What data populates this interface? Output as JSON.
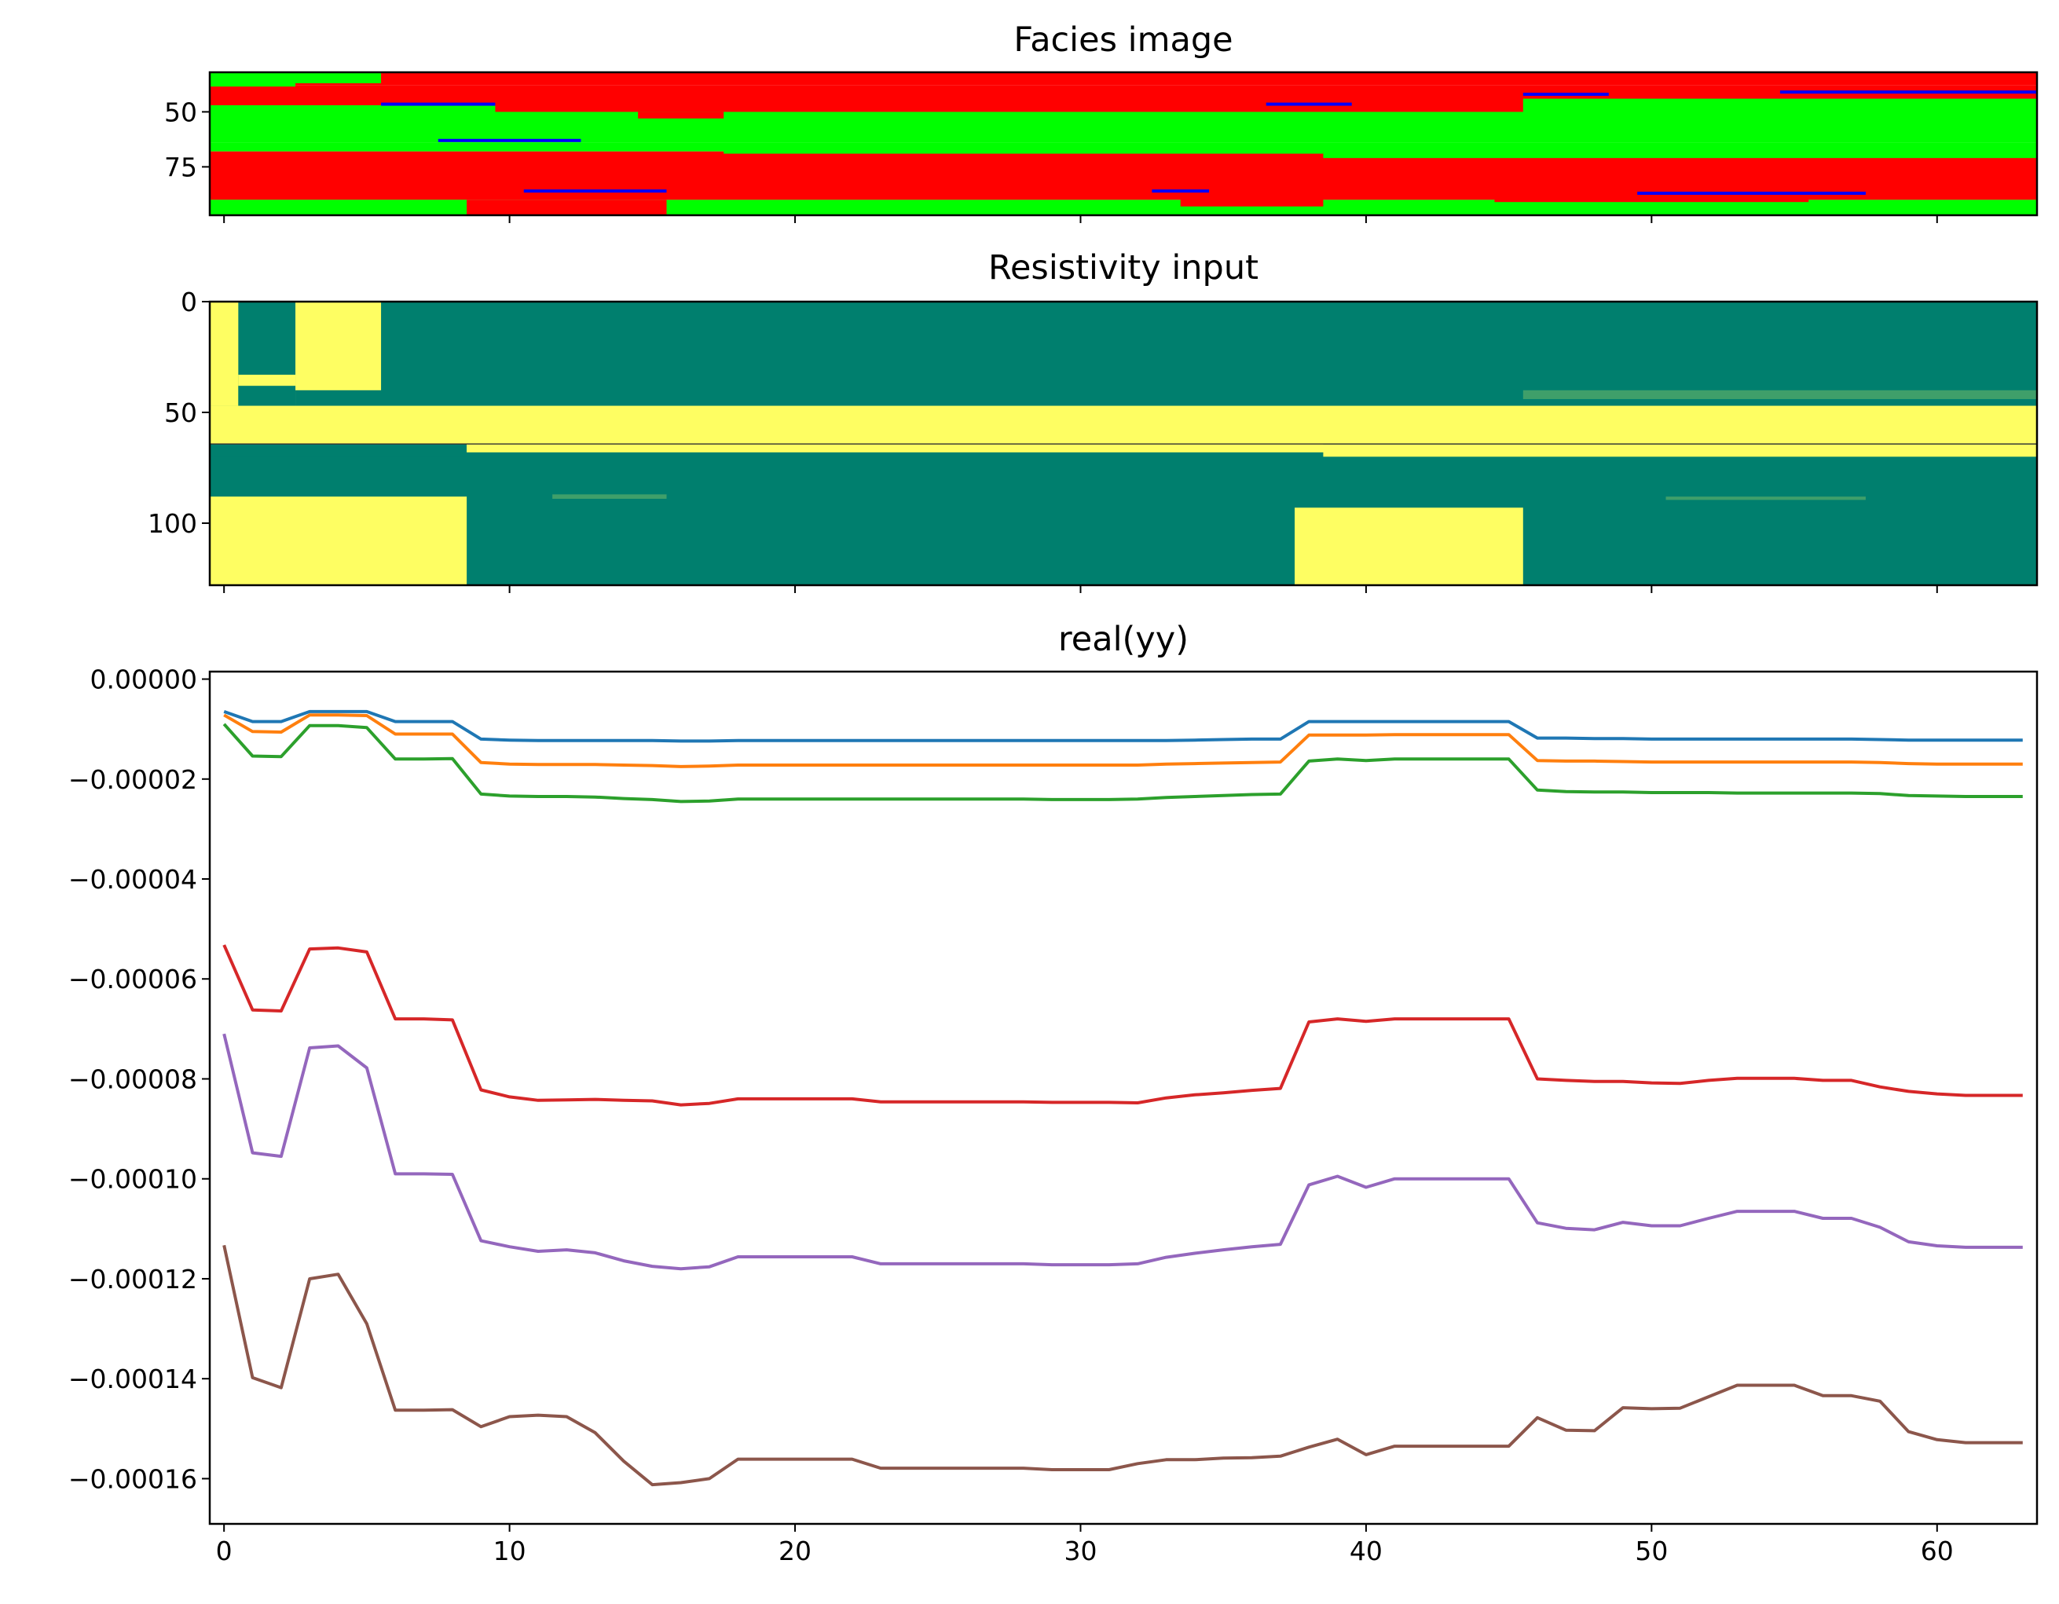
{
  "chart_data": [
    {
      "type": "heatmap",
      "title": "Facies image",
      "xlabel": "",
      "ylabel": "",
      "xlim": [
        -0.5,
        63.5
      ],
      "ylim": [
        97,
        32
      ],
      "x_ticks": [
        0,
        10,
        20,
        30,
        40,
        50,
        60
      ],
      "x_tick_labels_visible": false,
      "y_ticks": [
        50,
        75
      ],
      "colors": {
        "green": "#00ff00",
        "red": "#ff0000",
        "blue": "#0000ff"
      },
      "rows": [
        {
          "from": 32,
          "to": 38,
          "facies": "red",
          "note_left_cols": "green at columns 0-5"
        },
        {
          "from": 38,
          "to": 47,
          "facies": "red"
        },
        {
          "from": 47,
          "to": 52,
          "facies": "green"
        },
        {
          "from": 52,
          "to": 64,
          "facies": "green"
        },
        {
          "from": 64,
          "to": 68,
          "facies": "green"
        },
        {
          "from": 68,
          "to": 90,
          "facies": "red"
        },
        {
          "from": 90,
          "to": 97,
          "facies": "green"
        }
      ],
      "thin_blue_layers": [
        {
          "cols": [
            6,
            9
          ],
          "depth": 46.5
        },
        {
          "cols": [
            37,
            39
          ],
          "depth": 46.5
        },
        {
          "cols": [
            8,
            12
          ],
          "depth": 63
        },
        {
          "cols": [
            11,
            15
          ],
          "depth": 86
        },
        {
          "cols": [
            33,
            34
          ],
          "depth": 86
        },
        {
          "cols": [
            46,
            48
          ],
          "depth": 42
        },
        {
          "cols": [
            55,
            63
          ],
          "depth": 41
        },
        {
          "cols": [
            50,
            57
          ],
          "depth": 87
        }
      ],
      "grid": false
    },
    {
      "type": "heatmap",
      "title": "Resistivity input",
      "xlabel": "",
      "ylabel": "",
      "xlim": [
        -0.5,
        63.5
      ],
      "ylim": [
        128,
        0
      ],
      "x_ticks": [
        0,
        10,
        20,
        30,
        40,
        50,
        60
      ],
      "x_tick_labels_visible": false,
      "y_ticks": [
        0,
        50,
        100
      ],
      "colors": {
        "low": "#007f6e",
        "high": "#fefe62",
        "mid": "#3f9f6a"
      },
      "grid": false
    },
    {
      "type": "line",
      "title": "real(yy)",
      "xlabel": "",
      "ylabel": "",
      "xlim": [
        -0.5,
        63.5
      ],
      "ylim": [
        -0.00016905,
        1.5e-06
      ],
      "x_ticks": [
        0,
        10,
        20,
        30,
        40,
        50,
        60
      ],
      "x_tick_labels": [
        "0",
        "10",
        "20",
        "30",
        "40",
        "50",
        "60"
      ],
      "y_ticks": [
        0.0,
        -2e-05,
        -4e-05,
        -6e-05,
        -8e-05,
        -0.0001,
        -0.00012,
        -0.00014,
        -0.00016
      ],
      "y_tick_labels": [
        "0.00000",
        "−0.00002",
        "−0.00004",
        "−0.00006",
        "−0.00008",
        "−0.00010",
        "−0.00012",
        "−0.00014",
        "−0.00016"
      ],
      "grid": false,
      "series": [
        {
          "color": "#1f77b4",
          "values": [
            -6.5e-06,
            -8.5e-06,
            -8.5e-06,
            -6.5e-06,
            -6.5e-06,
            -6.5e-06,
            -8.5e-06,
            -8.5e-06,
            -8.5e-06,
            -1.2e-05,
            -1.22e-05,
            -1.23e-05,
            -1.23e-05,
            -1.23e-05,
            -1.23e-05,
            -1.23e-05,
            -1.24e-05,
            -1.24e-05,
            -1.23e-05,
            -1.23e-05,
            -1.23e-05,
            -1.23e-05,
            -1.23e-05,
            -1.23e-05,
            -1.23e-05,
            -1.23e-05,
            -1.23e-05,
            -1.23e-05,
            -1.23e-05,
            -1.23e-05,
            -1.23e-05,
            -1.23e-05,
            -1.23e-05,
            -1.23e-05,
            -1.22e-05,
            -1.21e-05,
            -1.2e-05,
            -1.2e-05,
            -8.5e-06,
            -8.5e-06,
            -8.5e-06,
            -8.5e-06,
            -8.5e-06,
            -8.5e-06,
            -8.5e-06,
            -8.5e-06,
            -1.18e-05,
            -1.18e-05,
            -1.19e-05,
            -1.19e-05,
            -1.2e-05,
            -1.2e-05,
            -1.2e-05,
            -1.2e-05,
            -1.2e-05,
            -1.2e-05,
            -1.2e-05,
            -1.2e-05,
            -1.21e-05,
            -1.22e-05,
            -1.22e-05,
            -1.22e-05,
            -1.22e-05,
            -1.22e-05
          ]
        },
        {
          "color": "#ff7f0e",
          "values": [
            -7.2e-06,
            -1.05e-05,
            -1.06e-05,
            -7.2e-06,
            -7.2e-06,
            -7.3e-06,
            -1.1e-05,
            -1.1e-05,
            -1.1e-05,
            -1.67e-05,
            -1.7e-05,
            -1.71e-05,
            -1.71e-05,
            -1.71e-05,
            -1.72e-05,
            -1.73e-05,
            -1.75e-05,
            -1.74e-05,
            -1.72e-05,
            -1.72e-05,
            -1.72e-05,
            -1.72e-05,
            -1.72e-05,
            -1.72e-05,
            -1.72e-05,
            -1.72e-05,
            -1.72e-05,
            -1.72e-05,
            -1.72e-05,
            -1.72e-05,
            -1.72e-05,
            -1.72e-05,
            -1.72e-05,
            -1.7e-05,
            -1.69e-05,
            -1.68e-05,
            -1.67e-05,
            -1.66e-05,
            -1.12e-05,
            -1.12e-05,
            -1.12e-05,
            -1.11e-05,
            -1.11e-05,
            -1.11e-05,
            -1.11e-05,
            -1.11e-05,
            -1.63e-05,
            -1.64e-05,
            -1.64e-05,
            -1.65e-05,
            -1.66e-05,
            -1.66e-05,
            -1.66e-05,
            -1.66e-05,
            -1.66e-05,
            -1.66e-05,
            -1.66e-05,
            -1.66e-05,
            -1.67e-05,
            -1.69e-05,
            -1.7e-05,
            -1.7e-05,
            -1.7e-05,
            -1.7e-05
          ]
        },
        {
          "color": "#2ca02c",
          "values": [
            -9e-06,
            -1.54e-05,
            -1.55e-05,
            -9.3e-06,
            -9.3e-06,
            -9.7e-06,
            -1.6e-05,
            -1.6e-05,
            -1.59e-05,
            -2.3e-05,
            -2.34e-05,
            -2.35e-05,
            -2.35e-05,
            -2.36e-05,
            -2.39e-05,
            -2.41e-05,
            -2.45e-05,
            -2.44e-05,
            -2.4e-05,
            -2.4e-05,
            -2.4e-05,
            -2.4e-05,
            -2.4e-05,
            -2.4e-05,
            -2.4e-05,
            -2.4e-05,
            -2.4e-05,
            -2.4e-05,
            -2.4e-05,
            -2.41e-05,
            -2.41e-05,
            -2.41e-05,
            -2.4e-05,
            -2.37e-05,
            -2.35e-05,
            -2.33e-05,
            -2.31e-05,
            -2.3e-05,
            -1.64e-05,
            -1.6e-05,
            -1.63e-05,
            -1.6e-05,
            -1.6e-05,
            -1.6e-05,
            -1.6e-05,
            -1.6e-05,
            -2.22e-05,
            -2.25e-05,
            -2.26e-05,
            -2.26e-05,
            -2.27e-05,
            -2.27e-05,
            -2.27e-05,
            -2.28e-05,
            -2.28e-05,
            -2.28e-05,
            -2.28e-05,
            -2.28e-05,
            -2.29e-05,
            -2.33e-05,
            -2.34e-05,
            -2.35e-05,
            -2.35e-05,
            -2.35e-05
          ]
        },
        {
          "color": "#d62728",
          "values": [
            -5.32e-05,
            -6.62e-05,
            -6.64e-05,
            -5.4e-05,
            -5.38e-05,
            -5.46e-05,
            -6.8e-05,
            -6.8e-05,
            -6.82e-05,
            -8.22e-05,
            -8.36e-05,
            -8.43e-05,
            -8.42e-05,
            -8.41e-05,
            -8.43e-05,
            -8.44e-05,
            -8.52e-05,
            -8.49e-05,
            -8.4e-05,
            -8.4e-05,
            -8.4e-05,
            -8.4e-05,
            -8.4e-05,
            -8.46e-05,
            -8.46e-05,
            -8.46e-05,
            -8.46e-05,
            -8.46e-05,
            -8.46e-05,
            -8.47e-05,
            -8.47e-05,
            -8.47e-05,
            -8.48e-05,
            -8.38e-05,
            -8.32e-05,
            -8.28e-05,
            -8.23e-05,
            -8.19e-05,
            -6.86e-05,
            -6.8e-05,
            -6.85e-05,
            -6.8e-05,
            -6.8e-05,
            -6.8e-05,
            -6.8e-05,
            -6.8e-05,
            -8e-05,
            -8.03e-05,
            -8.05e-05,
            -8.05e-05,
            -8.08e-05,
            -8.09e-05,
            -8.03e-05,
            -7.99e-05,
            -7.99e-05,
            -7.99e-05,
            -8.03e-05,
            -8.03e-05,
            -8.16e-05,
            -8.25e-05,
            -8.3e-05,
            -8.33e-05,
            -8.33e-05,
            -8.33e-05
          ]
        },
        {
          "color": "#9467bd",
          "values": [
            -7.1e-05,
            -9.48e-05,
            -9.55e-05,
            -7.38e-05,
            -7.34e-05,
            -7.78e-05,
            -9.9e-05,
            -9.9e-05,
            -9.91e-05,
            -0.0001124,
            -0.0001136,
            -0.0001145,
            -0.0001142,
            -0.0001148,
            -0.0001164,
            -0.0001175,
            -0.000118,
            -0.0001176,
            -0.0001156,
            -0.0001156,
            -0.0001156,
            -0.0001156,
            -0.0001156,
            -0.000117,
            -0.000117,
            -0.000117,
            -0.000117,
            -0.000117,
            -0.000117,
            -0.0001172,
            -0.0001172,
            -0.0001172,
            -0.000117,
            -0.0001157,
            -0.0001149,
            -0.0001142,
            -0.0001136,
            -0.0001131,
            -0.0001012,
            -9.95e-05,
            -0.0001017,
            -0.0001,
            -0.0001,
            -0.0001,
            -0.0001,
            -0.0001,
            -0.0001088,
            -0.0001099,
            -0.0001102,
            -0.0001087,
            -0.0001094,
            -0.0001094,
            -0.0001079,
            -0.0001065,
            -0.0001065,
            -0.0001065,
            -0.0001079,
            -0.0001079,
            -0.0001097,
            -0.0001126,
            -0.0001134,
            -0.0001137,
            -0.0001137,
            -0.0001137
          ]
        },
        {
          "color": "#8c564b",
          "values": [
            -0.0001133,
            -0.0001398,
            -0.0001418,
            -0.00012,
            -0.0001191,
            -0.000129,
            -0.0001463,
            -0.0001463,
            -0.0001462,
            -0.0001496,
            -0.0001476,
            -0.0001473,
            -0.0001476,
            -0.0001508,
            -0.0001565,
            -0.0001612,
            -0.0001608,
            -0.00016,
            -0.0001561,
            -0.0001561,
            -0.0001561,
            -0.0001561,
            -0.0001561,
            -0.0001579,
            -0.0001579,
            -0.0001579,
            -0.0001579,
            -0.0001579,
            -0.0001579,
            -0.0001582,
            -0.0001582,
            -0.0001582,
            -0.000157,
            -0.0001562,
            -0.0001562,
            -0.0001559,
            -0.0001558,
            -0.0001555,
            -0.0001537,
            -0.0001521,
            -0.0001552,
            -0.0001535,
            -0.0001535,
            -0.0001535,
            -0.0001535,
            -0.0001535,
            -0.0001478,
            -0.0001503,
            -0.0001504,
            -0.0001458,
            -0.000146,
            -0.0001459,
            -0.0001436,
            -0.0001413,
            -0.0001413,
            -0.0001413,
            -0.0001434,
            -0.0001434,
            -0.0001445,
            -0.0001506,
            -0.0001522,
            -0.0001528,
            -0.0001528,
            -0.0001528
          ]
        }
      ]
    }
  ]
}
